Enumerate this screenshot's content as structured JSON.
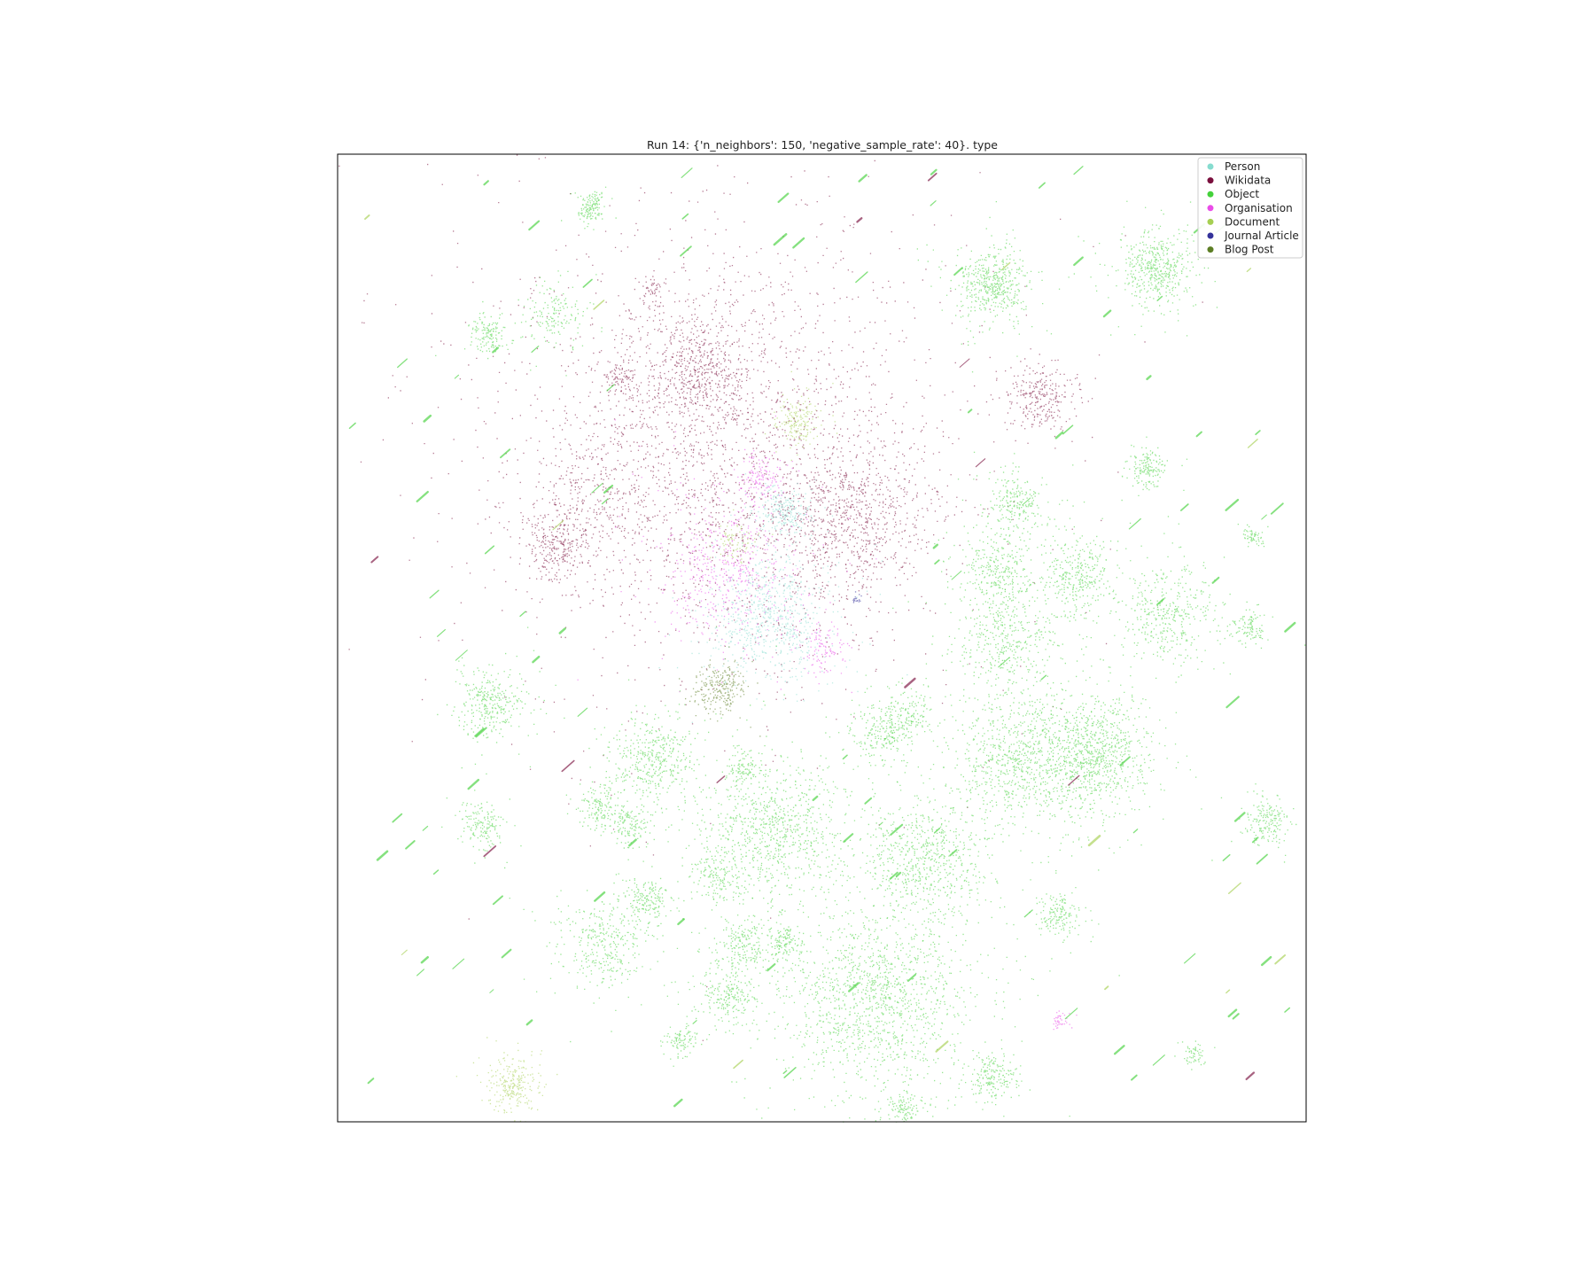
{
  "chart_data": {
    "type": "scatter",
    "title": "Run 14: {'n_neighbors': 150, 'negative_sample_rate': 40}. type",
    "xlabel": "",
    "ylabel": "",
    "xlim": [
      0,
      100
    ],
    "ylim": [
      0,
      100
    ],
    "grid": false,
    "axis_ticks": false,
    "legend_position": "top-right",
    "series": [
      {
        "name": "Person",
        "color": "#86dccf"
      },
      {
        "name": "Wikidata",
        "color": "#7a0f3d"
      },
      {
        "name": "Object",
        "color": "#44d13a"
      },
      {
        "name": "Organisation",
        "color": "#ea4ce8"
      },
      {
        "name": "Document",
        "color": "#a6cf52"
      },
      {
        "name": "Journal Article",
        "color": "#34329a"
      },
      {
        "name": "Blog Post",
        "color": "#5c7e24"
      }
    ],
    "clusters": [
      {
        "series": "Wikidata",
        "x": 39,
        "y": 69,
        "spread": 10,
        "n": 2600
      },
      {
        "series": "Wikidata",
        "x": 37,
        "y": 78,
        "spread": 2.5,
        "n": 500
      },
      {
        "series": "Wikidata",
        "x": 52.5,
        "y": 62,
        "spread": 3.5,
        "n": 800
      },
      {
        "series": "Wikidata",
        "x": 22.5,
        "y": 59.5,
        "spread": 1.6,
        "n": 260
      },
      {
        "series": "Wikidata",
        "x": 26,
        "y": 65,
        "spread": 2.5,
        "n": 220
      },
      {
        "series": "Wikidata",
        "x": 72.5,
        "y": 75,
        "spread": 1.5,
        "n": 280
      },
      {
        "series": "Wikidata",
        "x": 29,
        "y": 77,
        "spread": 0.8,
        "n": 80
      },
      {
        "series": "Wikidata",
        "x": 32.5,
        "y": 86,
        "spread": 0.6,
        "n": 50
      },
      {
        "series": "Person",
        "x": 44.5,
        "y": 52,
        "spread": 2.8,
        "n": 700
      },
      {
        "series": "Person",
        "x": 46,
        "y": 63,
        "spread": 1.2,
        "n": 250
      },
      {
        "series": "Organisation",
        "x": 40,
        "y": 57,
        "spread": 3,
        "n": 500
      },
      {
        "series": "Organisation",
        "x": 43.5,
        "y": 66.5,
        "spread": 1.2,
        "n": 150
      },
      {
        "series": "Organisation",
        "x": 50,
        "y": 49,
        "spread": 1.2,
        "n": 120
      },
      {
        "series": "Organisation",
        "x": 74.5,
        "y": 10.5,
        "spread": 0.4,
        "n": 40
      },
      {
        "series": "Document",
        "x": 47.5,
        "y": 72.5,
        "spread": 1,
        "n": 180
      },
      {
        "series": "Document",
        "x": 18,
        "y": 3.8,
        "spread": 1.2,
        "n": 260
      },
      {
        "series": "Document",
        "x": 41,
        "y": 60,
        "spread": 0.8,
        "n": 80
      },
      {
        "series": "Blog Post",
        "x": 39.5,
        "y": 45,
        "spread": 1.2,
        "n": 260
      },
      {
        "series": "Journal Article",
        "x": 53.5,
        "y": 54,
        "spread": 0.3,
        "n": 20
      },
      {
        "series": "Object",
        "x": 67.5,
        "y": 86.5,
        "spread": 1.7,
        "n": 500
      },
      {
        "series": "Object",
        "x": 84.5,
        "y": 88.5,
        "spread": 1.7,
        "n": 480
      },
      {
        "series": "Object",
        "x": 15.5,
        "y": 81.5,
        "spread": 0.9,
        "n": 140
      },
      {
        "series": "Object",
        "x": 22.5,
        "y": 83.5,
        "spread": 1.3,
        "n": 160
      },
      {
        "series": "Object",
        "x": 26,
        "y": 94,
        "spread": 0.6,
        "n": 80
      },
      {
        "series": "Object",
        "x": 83.5,
        "y": 67.5,
        "spread": 0.9,
        "n": 160
      },
      {
        "series": "Object",
        "x": 70,
        "y": 64,
        "spread": 1.4,
        "n": 240
      },
      {
        "series": "Object",
        "x": 68,
        "y": 57,
        "spread": 1.7,
        "n": 300
      },
      {
        "series": "Object",
        "x": 76.5,
        "y": 56.5,
        "spread": 1.6,
        "n": 320
      },
      {
        "series": "Object",
        "x": 86,
        "y": 52.5,
        "spread": 2.4,
        "n": 420
      },
      {
        "series": "Object",
        "x": 69.5,
        "y": 50,
        "spread": 2.6,
        "n": 450
      },
      {
        "series": "Object",
        "x": 94,
        "y": 51,
        "spread": 0.7,
        "n": 100
      },
      {
        "series": "Object",
        "x": 70.5,
        "y": 37.5,
        "spread": 3,
        "n": 800
      },
      {
        "series": "Object",
        "x": 78,
        "y": 38,
        "spread": 2.6,
        "n": 900
      },
      {
        "series": "Object",
        "x": 16,
        "y": 43.5,
        "spread": 1.6,
        "n": 320
      },
      {
        "series": "Object",
        "x": 32.5,
        "y": 37.5,
        "spread": 2,
        "n": 420
      },
      {
        "series": "Object",
        "x": 42,
        "y": 36.5,
        "spread": 0.8,
        "n": 100
      },
      {
        "series": "Object",
        "x": 56,
        "y": 40,
        "spread": 1.4,
        "n": 180
      },
      {
        "series": "Object",
        "x": 58.5,
        "y": 42,
        "spread": 1.4,
        "n": 180
      },
      {
        "series": "Object",
        "x": 15,
        "y": 30.5,
        "spread": 1.1,
        "n": 160
      },
      {
        "series": "Object",
        "x": 27,
        "y": 32.5,
        "spread": 0.9,
        "n": 140
      },
      {
        "series": "Object",
        "x": 30,
        "y": 31,
        "spread": 1,
        "n": 140
      },
      {
        "series": "Object",
        "x": 45,
        "y": 30,
        "spread": 3.5,
        "n": 900
      },
      {
        "series": "Object",
        "x": 60.5,
        "y": 27,
        "spread": 3,
        "n": 700
      },
      {
        "series": "Object",
        "x": 39,
        "y": 25.5,
        "spread": 1.1,
        "n": 150
      },
      {
        "series": "Object",
        "x": 32,
        "y": 23,
        "spread": 1.1,
        "n": 180
      },
      {
        "series": "Object",
        "x": 27.5,
        "y": 18.5,
        "spread": 2,
        "n": 350
      },
      {
        "series": "Object",
        "x": 41.5,
        "y": 18.5,
        "spread": 1.3,
        "n": 180
      },
      {
        "series": "Object",
        "x": 55.5,
        "y": 12.5,
        "spread": 4.5,
        "n": 1400
      },
      {
        "series": "Object",
        "x": 40.5,
        "y": 13,
        "spread": 1.3,
        "n": 220
      },
      {
        "series": "Object",
        "x": 46,
        "y": 18.5,
        "spread": 0.9,
        "n": 140
      },
      {
        "series": "Object",
        "x": 74.5,
        "y": 21.5,
        "spread": 0.9,
        "n": 160
      },
      {
        "series": "Object",
        "x": 67.5,
        "y": 4.6,
        "spread": 1.1,
        "n": 200
      },
      {
        "series": "Object",
        "x": 58.5,
        "y": 1.1,
        "spread": 0.8,
        "n": 120
      },
      {
        "series": "Object",
        "x": 35.5,
        "y": 8.5,
        "spread": 0.7,
        "n": 100
      },
      {
        "series": "Object",
        "x": 96,
        "y": 31,
        "spread": 1.1,
        "n": 180
      },
      {
        "series": "Object",
        "x": 26.2,
        "y": 95.2,
        "spread": 0.5,
        "n": 60
      },
      {
        "series": "Object",
        "x": 94.5,
        "y": 60.5,
        "spread": 0.5,
        "n": 60
      },
      {
        "series": "Object",
        "x": 88.5,
        "y": 7,
        "spread": 0.5,
        "n": 60
      }
    ]
  }
}
